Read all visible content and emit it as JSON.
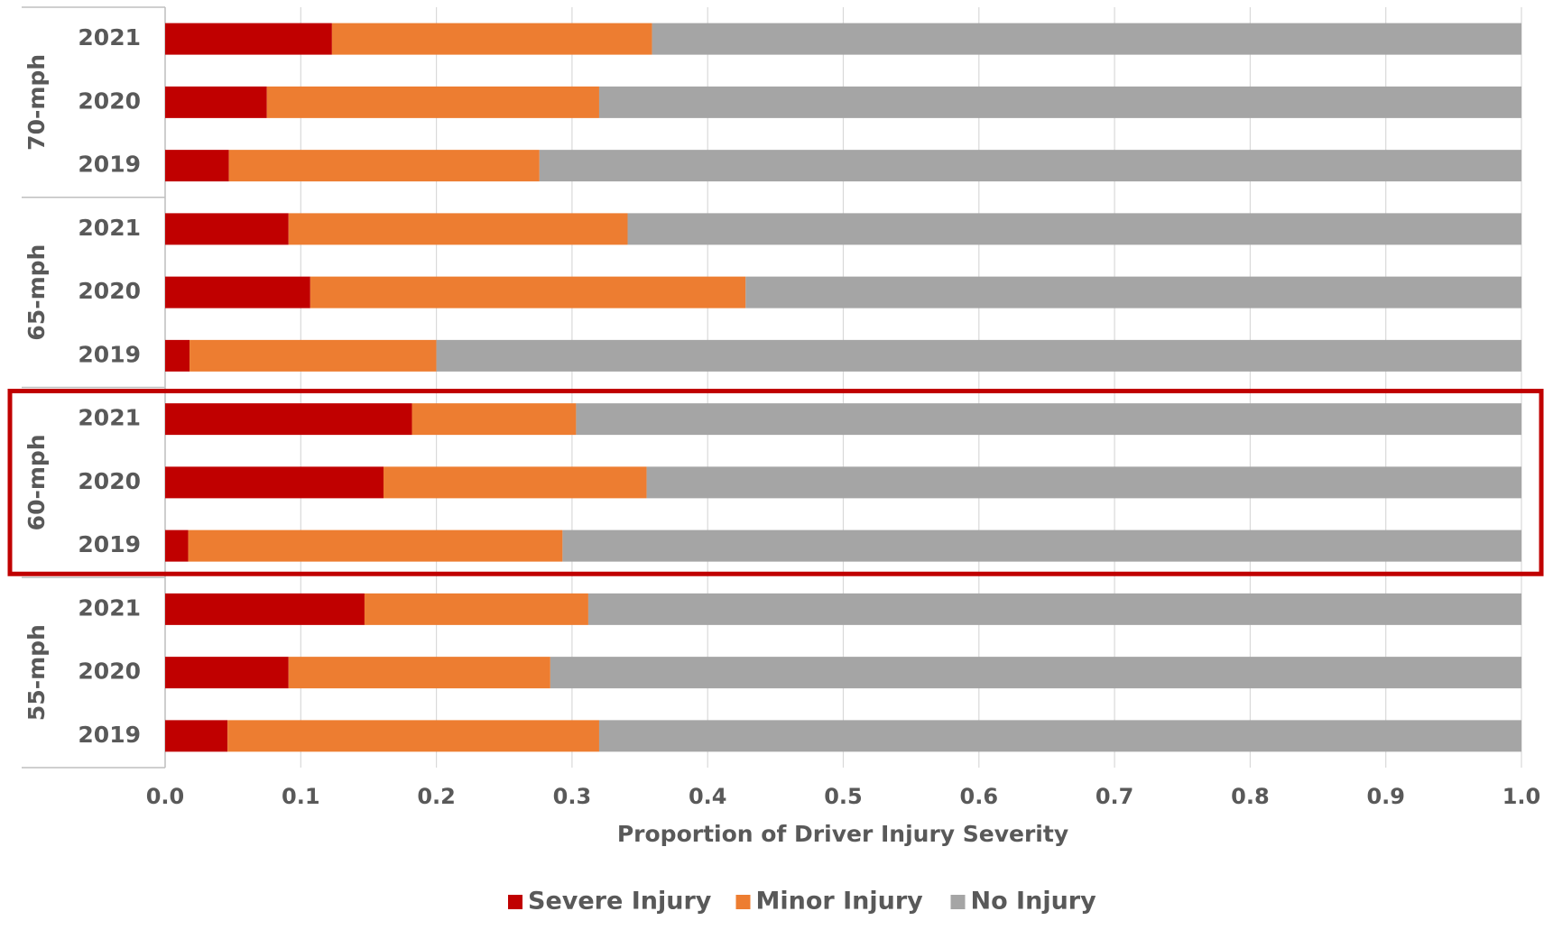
{
  "chart_data": {
    "type": "stacked-barh",
    "x_label": "Proportion of Driver Injury Severity",
    "groups": [
      {
        "name": "70-mph",
        "size": 3
      },
      {
        "name": "65-mph",
        "size": 3
      },
      {
        "name": "60-mph",
        "size": 3
      },
      {
        "name": "55-mph",
        "size": 3
      }
    ],
    "highlight_group": "60-mph",
    "highlight_color": "#c00000",
    "categories": [
      "2021",
      "2020",
      "2019",
      "2021",
      "2020",
      "2019",
      "2021",
      "2020",
      "2019",
      "2021",
      "2020",
      "2019"
    ],
    "series": [
      {
        "name": "Severe Injury",
        "color": "#c00000",
        "values": [
          0.123,
          0.075,
          0.047,
          0.091,
          0.107,
          0.018,
          0.182,
          0.161,
          0.017,
          0.147,
          0.091,
          0.046
        ]
      },
      {
        "name": "Minor Injury",
        "color": "#ed7d31",
        "values": [
          0.236,
          0.245,
          0.229,
          0.25,
          0.321,
          0.182,
          0.121,
          0.194,
          0.276,
          0.165,
          0.193,
          0.274
        ]
      },
      {
        "name": "No Injury",
        "color": "#a5a5a5",
        "values": [
          0.641,
          0.68,
          0.724,
          0.659,
          0.572,
          0.8,
          0.697,
          0.645,
          0.707,
          0.688,
          0.716,
          0.68
        ]
      }
    ],
    "xlim": [
      0,
      1
    ],
    "xticks": [
      {
        "value": 0,
        "label": "0.0"
      },
      0.1,
      0.2,
      0.3,
      0.4,
      0.5,
      0.6,
      0.7,
      0.8,
      0.9,
      {
        "value": 1,
        "label": "1.0"
      }
    ],
    "grid": true,
    "legend": "bottom"
  }
}
